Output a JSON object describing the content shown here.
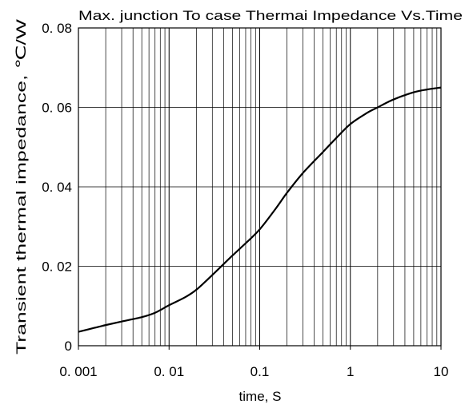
{
  "chart_data": {
    "type": "line",
    "title": "Max. junction To case Thermai  Impedance  Vs.Time",
    "xlabel": "time, S",
    "ylabel": "Transient thermal impedance, ℃/W",
    "x_scale": "log",
    "xlim": [
      0.001,
      10
    ],
    "ylim": [
      0,
      0.08
    ],
    "grid": true,
    "x_ticks": [
      0.001,
      0.01,
      0.1,
      1,
      10
    ],
    "x_tick_labels": [
      "0. 001",
      "0. 01",
      "0.1",
      "1",
      "10"
    ],
    "y_ticks": [
      0,
      0.02,
      0.04,
      0.06,
      0.08
    ],
    "y_tick_labels": [
      "0",
      "0. 02",
      "0. 04",
      "0. 06",
      "0. 08"
    ],
    "line_color": "#000000",
    "series": [
      {
        "x": [
          0.001,
          0.0015,
          0.002,
          0.003,
          0.005,
          0.007,
          0.01,
          0.015,
          0.02,
          0.03,
          0.05,
          0.07,
          0.1,
          0.15,
          0.2,
          0.3,
          0.5,
          0.7,
          1,
          1.5,
          2,
          3,
          5,
          7,
          10
        ],
        "y": [
          0.0035,
          0.0045,
          0.0052,
          0.0061,
          0.0072,
          0.0083,
          0.0102,
          0.0122,
          0.0141,
          0.0178,
          0.0227,
          0.0258,
          0.0293,
          0.0345,
          0.0385,
          0.0435,
          0.0488,
          0.0523,
          0.0558,
          0.0585,
          0.06,
          0.062,
          0.0638,
          0.0645,
          0.065
        ]
      }
    ]
  }
}
